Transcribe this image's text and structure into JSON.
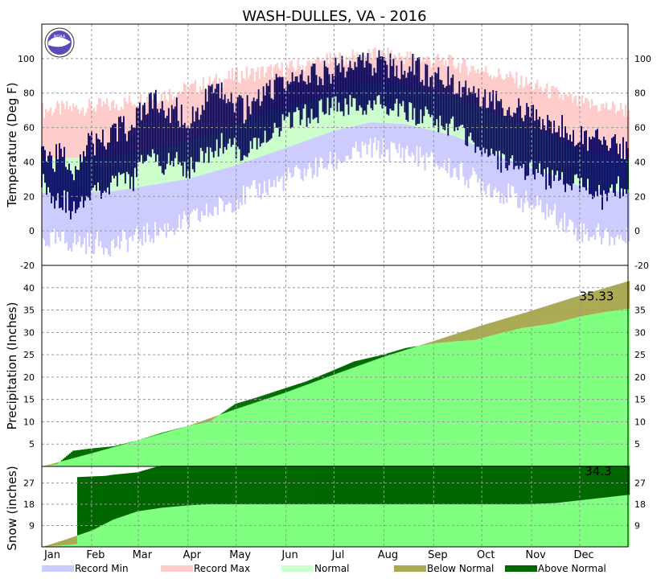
{
  "chart_data": [
    {
      "type": "line",
      "panel": "temperature",
      "title": "WASH-DULLES, VA - 2016",
      "ylabel": "Temperature (Deg F)",
      "ylim": [
        -20,
        120
      ],
      "yticks": [
        -20,
        0,
        20,
        40,
        60,
        80,
        100
      ],
      "grid": true,
      "series_style": {
        "record_band": "#ccccff",
        "record_max": "#ffcccc",
        "normal": "#ccffcc",
        "observed": "#000066"
      },
      "normals": {
        "day": [
          1,
          45,
          91,
          121,
          152,
          182,
          205,
          227,
          258,
          288,
          319,
          335,
          366
        ],
        "normal_high": [
          42,
          43,
          52,
          62,
          72,
          80,
          86,
          84,
          77,
          66,
          55,
          46,
          42
        ],
        "normal_low": [
          22,
          23,
          30,
          38,
          48,
          58,
          63,
          62,
          55,
          42,
          32,
          26,
          22
        ],
        "record_high": [
          70,
          73,
          82,
          90,
          94,
          99,
          102,
          101,
          97,
          90,
          80,
          74,
          70
        ],
        "record_low": [
          -5,
          -8,
          5,
          18,
          30,
          40,
          48,
          46,
          35,
          22,
          10,
          0,
          -5
        ]
      },
      "observed": {
        "day": [
          1,
          8,
          15,
          22,
          29,
          36,
          43,
          50,
          57,
          64,
          71,
          78,
          85,
          92,
          99,
          106,
          113,
          120,
          127,
          134,
          141,
          148,
          155,
          162,
          169,
          176,
          183,
          190,
          197,
          204,
          211,
          218,
          225,
          232,
          239,
          246,
          253,
          260,
          267,
          274,
          281,
          288,
          295,
          302,
          309,
          316,
          323,
          330,
          337,
          344,
          351,
          358,
          366
        ],
        "high": [
          48,
          42,
          44,
          36,
          52,
          50,
          55,
          60,
          58,
          72,
          75,
          68,
          70,
          62,
          72,
          78,
          80,
          76,
          70,
          74,
          82,
          85,
          88,
          86,
          90,
          92,
          94,
          96,
          95,
          98,
          97,
          96,
          94,
          95,
          92,
          90,
          88,
          86,
          84,
          80,
          78,
          74,
          72,
          68,
          65,
          62,
          60,
          58,
          56,
          52,
          54,
          50,
          46
        ],
        "low": [
          30,
          20,
          18,
          10,
          22,
          26,
          24,
          30,
          28,
          40,
          44,
          38,
          40,
          36,
          42,
          46,
          50,
          48,
          46,
          50,
          56,
          60,
          64,
          66,
          68,
          70,
          72,
          72,
          72,
          74,
          72,
          70,
          70,
          68,
          66,
          64,
          62,
          58,
          54,
          48,
          44,
          40,
          38,
          36,
          34,
          30,
          28,
          30,
          26,
          22,
          18,
          24,
          28
        ]
      },
      "right_axis_ticks": [
        -20,
        0,
        20,
        40,
        60,
        80,
        100
      ]
    },
    {
      "type": "area",
      "panel": "precipitation",
      "ylabel": "Precipitation (Inches)",
      "ylim": [
        0,
        45
      ],
      "yticks": [
        5,
        10,
        15,
        20,
        25,
        30,
        35,
        40
      ],
      "annotation": "35.33",
      "series": [
        {
          "name": "Observed cumulative",
          "day": [
            1,
            10,
            20,
            31,
            45,
            60,
            75,
            91,
            105,
            121,
            135,
            152,
            165,
            182,
            195,
            213,
            227,
            244,
            258,
            270,
            288,
            300,
            319,
            335,
            350,
            366
          ],
          "values": [
            0.0,
            0.5,
            3.5,
            4.0,
            4.5,
            5.8,
            7.5,
            9.0,
            10.0,
            14.0,
            15.5,
            17.5,
            19.0,
            21.5,
            23.5,
            25.0,
            26.5,
            27.5,
            28.0,
            28.3,
            30.0,
            31.0,
            32.0,
            33.5,
            34.5,
            35.33
          ]
        },
        {
          "name": "Normal cumulative",
          "day": [
            1,
            32,
            60,
            91,
            121,
            152,
            182,
            213,
            244,
            274,
            305,
            335,
            366
          ],
          "values": [
            0.0,
            3.0,
            5.8,
            9.0,
            12.8,
            16.5,
            20.5,
            24.5,
            28.0,
            31.5,
            34.8,
            38.2,
            41.5
          ]
        }
      ]
    },
    {
      "type": "area",
      "panel": "snow",
      "ylabel": "Snow (inches)",
      "ylim": [
        0,
        34
      ],
      "yticks": [
        9,
        18,
        27
      ],
      "annotation": "34.3",
      "series": [
        {
          "name": "Observed cumulative",
          "day": [
            1,
            10,
            20,
            22,
            23,
            40,
            45,
            60,
            70,
            75,
            366
          ],
          "values": [
            0,
            0.5,
            1.0,
            1.2,
            29.5,
            30,
            30.5,
            31.5,
            33.5,
            34.3,
            34.3
          ]
        },
        {
          "name": "Normal cumulative",
          "day": [
            1,
            15,
            32,
            45,
            60,
            75,
            91,
            105,
            121,
            300,
            320,
            340,
            366
          ],
          "values": [
            0,
            3.0,
            7.0,
            11.5,
            15.0,
            16.5,
            17.5,
            18.0,
            18.0,
            18.0,
            18.5,
            20.0,
            22.0
          ]
        }
      ]
    },
    {
      "type": "table",
      "panel": "axis",
      "x_categories": [
        "Jan",
        "Feb",
        "Mar",
        "Apr",
        "May",
        "Jun",
        "Jul",
        "Aug",
        "Sep",
        "Oct",
        "Nov",
        "Dec"
      ],
      "month_start_day": [
        1,
        32,
        61,
        92,
        122,
        153,
        183,
        214,
        245,
        275,
        306,
        336
      ],
      "year_days": 366
    }
  ],
  "legend": [
    {
      "label": "Record Min",
      "color": "#ccccff"
    },
    {
      "label": "Record Max",
      "color": "#ffcccc"
    },
    {
      "label": "Normal",
      "color": "#ccffcc"
    },
    {
      "label": "Below Normal",
      "color": "#aaaa55"
    },
    {
      "label": "Above Normal",
      "color": "#006600"
    }
  ],
  "logo": {
    "text": "NOAA"
  },
  "colors": {
    "precip_obs": "#80ff80",
    "below_normal": "#aaaa55",
    "above_normal": "#006600",
    "grid": "#999999",
    "axis": "#000000"
  }
}
